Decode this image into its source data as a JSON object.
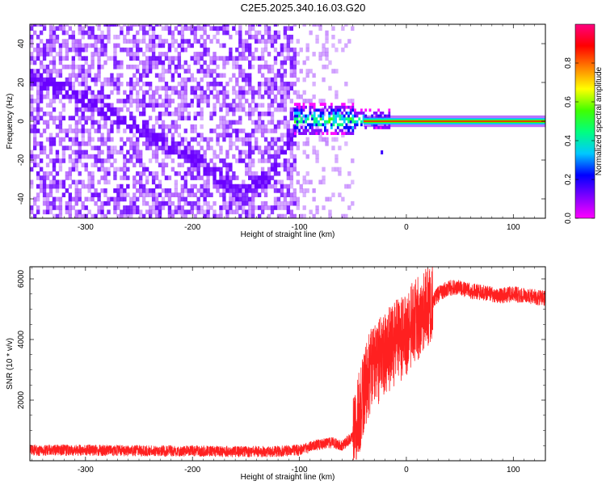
{
  "title": "C2E5.2025.340.16.03.G20",
  "chart_data": [
    {
      "type": "heatmap",
      "xlabel": "Height of straight line (km)",
      "ylabel": "Frequency (Hz)",
      "xlim": [
        -352,
        130
      ],
      "ylim": [
        -50,
        50
      ],
      "xticks": [
        -300,
        -200,
        -100,
        0,
        100
      ],
      "yticks": [
        -40,
        -20,
        0,
        20,
        40
      ],
      "colorbar": {
        "label": "Normalized spectral amplitude",
        "range": [
          0,
          1
        ],
        "ticks": [
          0,
          0.2,
          0.4,
          0.6,
          0.8
        ],
        "tick_labels": [
          "0.0",
          "0.2",
          "0.4",
          "0.6",
          "0.8"
        ],
        "colors": [
          "#ff00ff",
          "#8000ff",
          "#0000ff",
          "#00c8ff",
          "#00ff80",
          "#40ff00",
          "#ffff00",
          "#ff8000",
          "#ff0000",
          "#ff0080"
        ]
      },
      "features": {
        "noise_region_x": [
          -352,
          -50
        ],
        "diagonal_track": [
          [
            -352,
            22
          ],
          [
            -300,
            10
          ],
          [
            -250,
            -5
          ],
          [
            -200,
            -20
          ],
          [
            -160,
            -38
          ],
          [
            -130,
            -30
          ],
          [
            -105,
            -5
          ]
        ],
        "carrier_start_x": -100,
        "carrier_frequency": 0
      }
    },
    {
      "type": "line",
      "xlabel": "Height of straight line (km)",
      "ylabel": "SNR (10 * v/v)",
      "xlim": [
        -352,
        130
      ],
      "ylim": [
        0,
        6400
      ],
      "xticks": [
        -300,
        -200,
        -100,
        0,
        100
      ],
      "yticks": [
        2000,
        4000,
        6000
      ],
      "color": "#ff2020",
      "series": [
        {
          "name": "SNR",
          "x": [
            -352,
            -300,
            -250,
            -200,
            -150,
            -120,
            -100,
            -80,
            -70,
            -60,
            -50,
            -45,
            -40,
            -35,
            -30,
            -25,
            -20,
            -15,
            -10,
            -5,
            0,
            10,
            20,
            30,
            40,
            50,
            60,
            70,
            80,
            90,
            100,
            110,
            120,
            130
          ],
          "y": [
            350,
            350,
            330,
            320,
            300,
            310,
            350,
            550,
            600,
            500,
            800,
            1500,
            2200,
            2800,
            3200,
            3300,
            3500,
            3700,
            3900,
            4000,
            4200,
            4700,
            5100,
            5500,
            5700,
            5700,
            5600,
            5550,
            5500,
            5450,
            5500,
            5450,
            5400,
            5350
          ]
        }
      ]
    }
  ]
}
